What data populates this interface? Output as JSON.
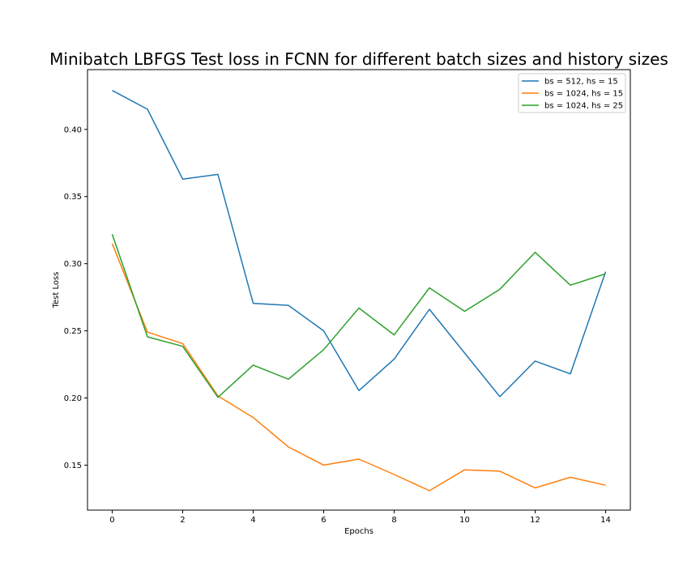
{
  "chart_data": {
    "type": "line",
    "title": "Minibatch LBFGS Test loss in FCNN for different batch sizes and history sizes",
    "xlabel": "Epochs",
    "ylabel": "Test Loss",
    "x": [
      0,
      1,
      2,
      3,
      4,
      5,
      6,
      7,
      8,
      9,
      10,
      11,
      12,
      13,
      14
    ],
    "xlim": [
      -0.7,
      14.7
    ],
    "ylim": [
      0.1165,
      0.4445
    ],
    "xticks": [
      0,
      2,
      4,
      6,
      8,
      10,
      12,
      14
    ],
    "yticks": [
      0.15,
      0.2,
      0.25,
      0.3,
      0.35,
      0.4
    ],
    "ytick_labels": [
      "0.15",
      "0.20",
      "0.25",
      "0.30",
      "0.35",
      "0.40"
    ],
    "grid": false,
    "legend_position": "upper right",
    "series": [
      {
        "name": "bs = 512, hs = 15",
        "color": "#1f77b4",
        "values": [
          0.429,
          0.415,
          0.363,
          0.3665,
          0.2705,
          0.269,
          0.25,
          0.2055,
          0.229,
          0.266,
          0.2335,
          0.201,
          0.2275,
          0.218,
          0.294
        ]
      },
      {
        "name": "bs = 1024, hs = 15",
        "color": "#ff7f0e",
        "values": [
          0.315,
          0.249,
          0.2405,
          0.2015,
          0.1855,
          0.1635,
          0.15,
          0.1545,
          0.143,
          0.131,
          0.1465,
          0.1455,
          0.133,
          0.141,
          0.135
        ]
      },
      {
        "name": "bs = 1024, hs = 25",
        "color": "#2ca02c",
        "values": [
          0.322,
          0.2455,
          0.2385,
          0.2005,
          0.2245,
          0.214,
          0.236,
          0.267,
          0.247,
          0.282,
          0.2645,
          0.281,
          0.3085,
          0.284,
          0.2925
        ]
      }
    ]
  }
}
